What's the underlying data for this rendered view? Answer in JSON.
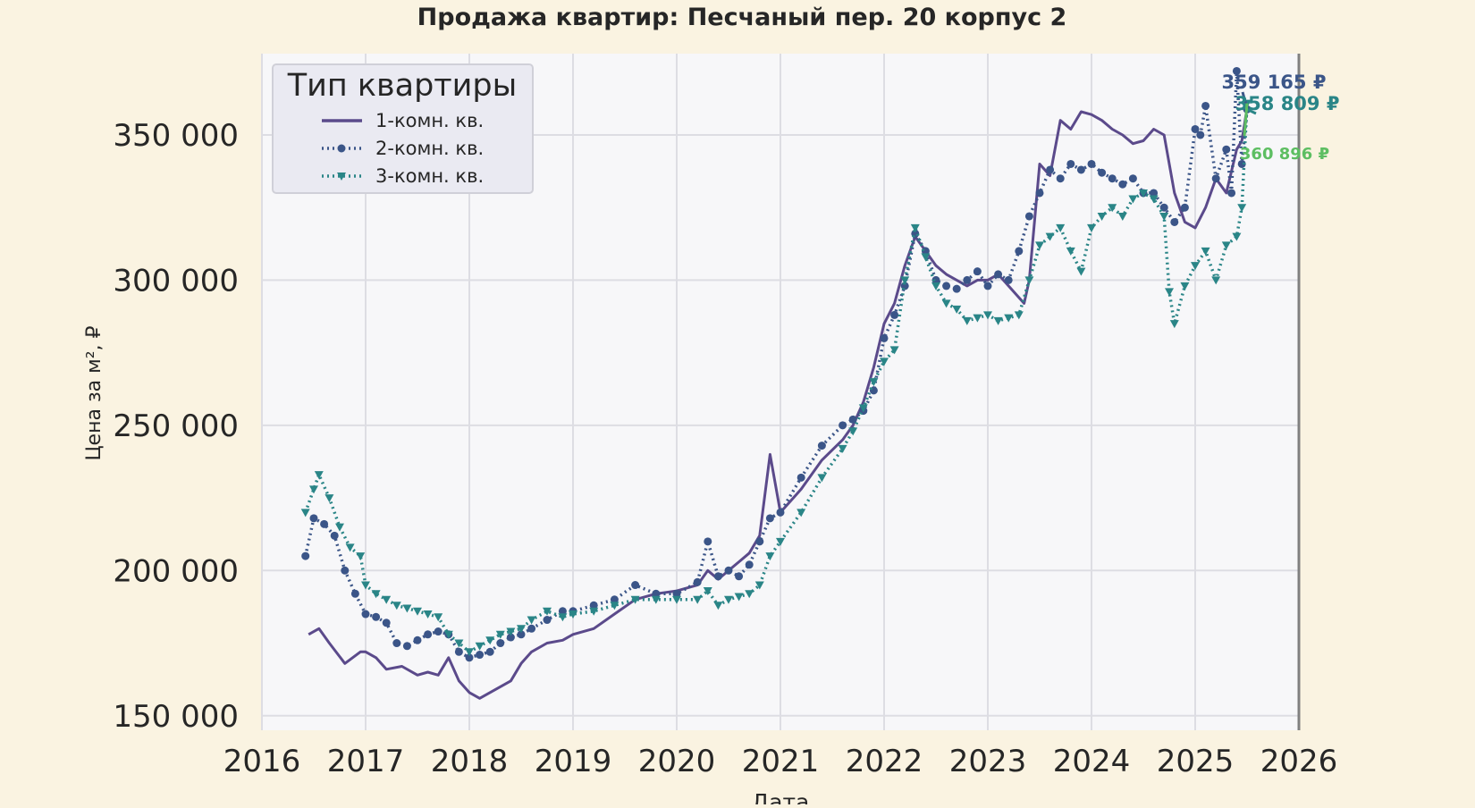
{
  "chart_data": {
    "type": "line",
    "title": "Продажа квартир: Песчаный пер. 20 корпус 2",
    "xlabel": "Дата",
    "ylabel": "Цена за м², ₽",
    "xlim": [
      2016.0,
      2026.0
    ],
    "ylim": [
      145000,
      378000
    ],
    "x_ticks": [
      "2016",
      "2017",
      "2018",
      "2019",
      "2020",
      "2021",
      "2022",
      "2023",
      "2024",
      "2025",
      "2026"
    ],
    "y_ticks": [
      "150 000",
      "200 000",
      "250 000",
      "300 000",
      "350 000"
    ],
    "y_tick_values": [
      150000,
      200000,
      250000,
      300000,
      350000
    ],
    "grid": true,
    "legend": {
      "title": "Тип квартиры",
      "position": "top-left"
    },
    "colors": {
      "page_bg": "#faf3e1",
      "plot_bg": "#f7f7f9",
      "grid": "#dddde3",
      "s1": "#5b4a8b",
      "s2": "#3b5588",
      "s3": "#2a8587",
      "annotation3": "#5dbe62"
    },
    "series": [
      {
        "name": "1-комн. кв.",
        "style": "solid",
        "x": [
          2016.45,
          2016.55,
          2016.65,
          2016.8,
          2016.95,
          2017.0,
          2017.1,
          2017.2,
          2017.35,
          2017.5,
          2017.6,
          2017.7,
          2017.8,
          2017.9,
          2018.0,
          2018.1,
          2018.2,
          2018.3,
          2018.4,
          2018.5,
          2018.6,
          2018.75,
          2018.9,
          2019.0,
          2019.2,
          2019.4,
          2019.6,
          2019.8,
          2020.0,
          2020.2,
          2020.3,
          2020.4,
          2020.5,
          2020.6,
          2020.7,
          2020.8,
          2020.9,
          2021.0,
          2021.2,
          2021.4,
          2021.6,
          2021.7,
          2021.8,
          2021.9,
          2022.0,
          2022.1,
          2022.2,
          2022.3,
          2022.4,
          2022.5,
          2022.6,
          2022.7,
          2022.8,
          2022.9,
          2023.0,
          2023.1,
          2023.2,
          2023.3,
          2023.35,
          2023.4,
          2023.5,
          2023.6,
          2023.7,
          2023.8,
          2023.9,
          2024.0,
          2024.1,
          2024.2,
          2024.3,
          2024.4,
          2024.5,
          2024.6,
          2024.7,
          2024.8,
          2024.9,
          2025.0,
          2025.1,
          2025.2,
          2025.3,
          2025.4,
          2025.45,
          2025.5
        ],
        "values": [
          178000,
          180000,
          175000,
          168000,
          172000,
          172000,
          170000,
          166000,
          167000,
          164000,
          165000,
          164000,
          170000,
          162000,
          158000,
          156000,
          158000,
          160000,
          162000,
          168000,
          172000,
          175000,
          176000,
          178000,
          180000,
          185000,
          190000,
          192000,
          193000,
          195000,
          200000,
          197000,
          200000,
          203000,
          206000,
          212000,
          240000,
          220000,
          228000,
          238000,
          245000,
          250000,
          258000,
          270000,
          285000,
          292000,
          305000,
          315000,
          310000,
          305000,
          302000,
          300000,
          298000,
          300000,
          300000,
          302000,
          298000,
          294000,
          292000,
          300000,
          340000,
          336000,
          355000,
          352000,
          358000,
          357000,
          355000,
          352000,
          350000,
          347000,
          348000,
          352000,
          350000,
          330000,
          320000,
          318000,
          325000,
          335000,
          330000,
          345000,
          348000,
          359165
        ]
      },
      {
        "name": "2-комн. кв.",
        "style": "dotted-circle",
        "x": [
          2016.42,
          2016.5,
          2016.6,
          2016.7,
          2016.8,
          2016.9,
          2017.0,
          2017.1,
          2017.2,
          2017.3,
          2017.4,
          2017.5,
          2017.6,
          2017.7,
          2017.8,
          2017.9,
          2018.0,
          2018.1,
          2018.2,
          2018.3,
          2018.4,
          2018.5,
          2018.6,
          2018.75,
          2018.9,
          2019.0,
          2019.2,
          2019.4,
          2019.6,
          2019.8,
          2020.0,
          2020.2,
          2020.3,
          2020.4,
          2020.5,
          2020.6,
          2020.7,
          2020.8,
          2020.9,
          2021.0,
          2021.2,
          2021.4,
          2021.6,
          2021.7,
          2021.8,
          2021.9,
          2022.0,
          2022.1,
          2022.2,
          2022.3,
          2022.4,
          2022.5,
          2022.6,
          2022.7,
          2022.8,
          2022.9,
          2023.0,
          2023.1,
          2023.2,
          2023.3,
          2023.4,
          2023.5,
          2023.6,
          2023.7,
          2023.8,
          2023.9,
          2024.0,
          2024.1,
          2024.2,
          2024.3,
          2024.4,
          2024.5,
          2024.6,
          2024.7,
          2024.8,
          2024.9,
          2025.0,
          2025.05,
          2025.1,
          2025.2,
          2025.3,
          2025.35,
          2025.4,
          2025.45,
          2025.5
        ],
        "values": [
          205000,
          218000,
          216000,
          212000,
          200000,
          192000,
          185000,
          184000,
          182000,
          175000,
          174000,
          176000,
          178000,
          179000,
          178000,
          172000,
          170000,
          171000,
          172000,
          175000,
          177000,
          178000,
          180000,
          183000,
          186000,
          186000,
          188000,
          190000,
          195000,
          192000,
          192000,
          196000,
          210000,
          198000,
          200000,
          198000,
          202000,
          210000,
          218000,
          220000,
          232000,
          243000,
          250000,
          252000,
          255000,
          262000,
          280000,
          288000,
          298000,
          316000,
          310000,
          300000,
          298000,
          297000,
          300000,
          303000,
          298000,
          302000,
          300000,
          310000,
          322000,
          330000,
          338000,
          335000,
          340000,
          338000,
          340000,
          337000,
          335000,
          333000,
          335000,
          330000,
          330000,
          325000,
          320000,
          325000,
          352000,
          350000,
          360000,
          335000,
          345000,
          330000,
          372000,
          340000,
          358809
        ]
      },
      {
        "name": "3-комн. кв.",
        "style": "dotted-triangle",
        "x": [
          2016.42,
          2016.5,
          2016.55,
          2016.65,
          2016.75,
          2016.85,
          2016.95,
          2017.0,
          2017.1,
          2017.2,
          2017.3,
          2017.4,
          2017.5,
          2017.6,
          2017.7,
          2017.8,
          2017.9,
          2018.0,
          2018.1,
          2018.2,
          2018.3,
          2018.4,
          2018.5,
          2018.6,
          2018.75,
          2018.9,
          2019.0,
          2019.2,
          2019.4,
          2019.6,
          2019.8,
          2020.0,
          2020.2,
          2020.3,
          2020.4,
          2020.5,
          2020.6,
          2020.7,
          2020.8,
          2020.9,
          2021.0,
          2021.2,
          2021.4,
          2021.6,
          2021.7,
          2021.8,
          2021.9,
          2022.0,
          2022.1,
          2022.2,
          2022.3,
          2022.4,
          2022.5,
          2022.6,
          2022.7,
          2022.8,
          2022.9,
          2023.0,
          2023.1,
          2023.2,
          2023.3,
          2023.4,
          2023.5,
          2023.6,
          2023.7,
          2023.8,
          2023.9,
          2024.0,
          2024.1,
          2024.2,
          2024.3,
          2024.4,
          2024.5,
          2024.6,
          2024.7,
          2024.75,
          2024.8,
          2024.9,
          2025.0,
          2025.1,
          2025.2,
          2025.3,
          2025.4,
          2025.45,
          2025.5
        ],
        "values": [
          220000,
          228000,
          233000,
          225000,
          215000,
          208000,
          205000,
          195000,
          192000,
          190000,
          188000,
          187000,
          186000,
          185000,
          184000,
          178000,
          175000,
          172000,
          174000,
          176000,
          178000,
          179000,
          180000,
          183000,
          186000,
          184000,
          185000,
          186000,
          188000,
          190000,
          190000,
          190000,
          190000,
          193000,
          188000,
          190000,
          191000,
          192000,
          195000,
          205000,
          210000,
          220000,
          232000,
          242000,
          248000,
          256000,
          265000,
          272000,
          276000,
          300000,
          318000,
          308000,
          298000,
          292000,
          290000,
          286000,
          287000,
          288000,
          286000,
          287000,
          288000,
          300000,
          312000,
          315000,
          318000,
          310000,
          303000,
          318000,
          322000,
          325000,
          322000,
          328000,
          330000,
          328000,
          322000,
          296000,
          285000,
          298000,
          305000,
          310000,
          300000,
          312000,
          315000,
          325000,
          360896
        ]
      }
    ],
    "annotations": [
      {
        "series": 0,
        "label": "359 165 ₽"
      },
      {
        "series": 1,
        "label": "358 809 ₽"
      },
      {
        "series": 2,
        "label": "360 896 ₽"
      }
    ]
  }
}
